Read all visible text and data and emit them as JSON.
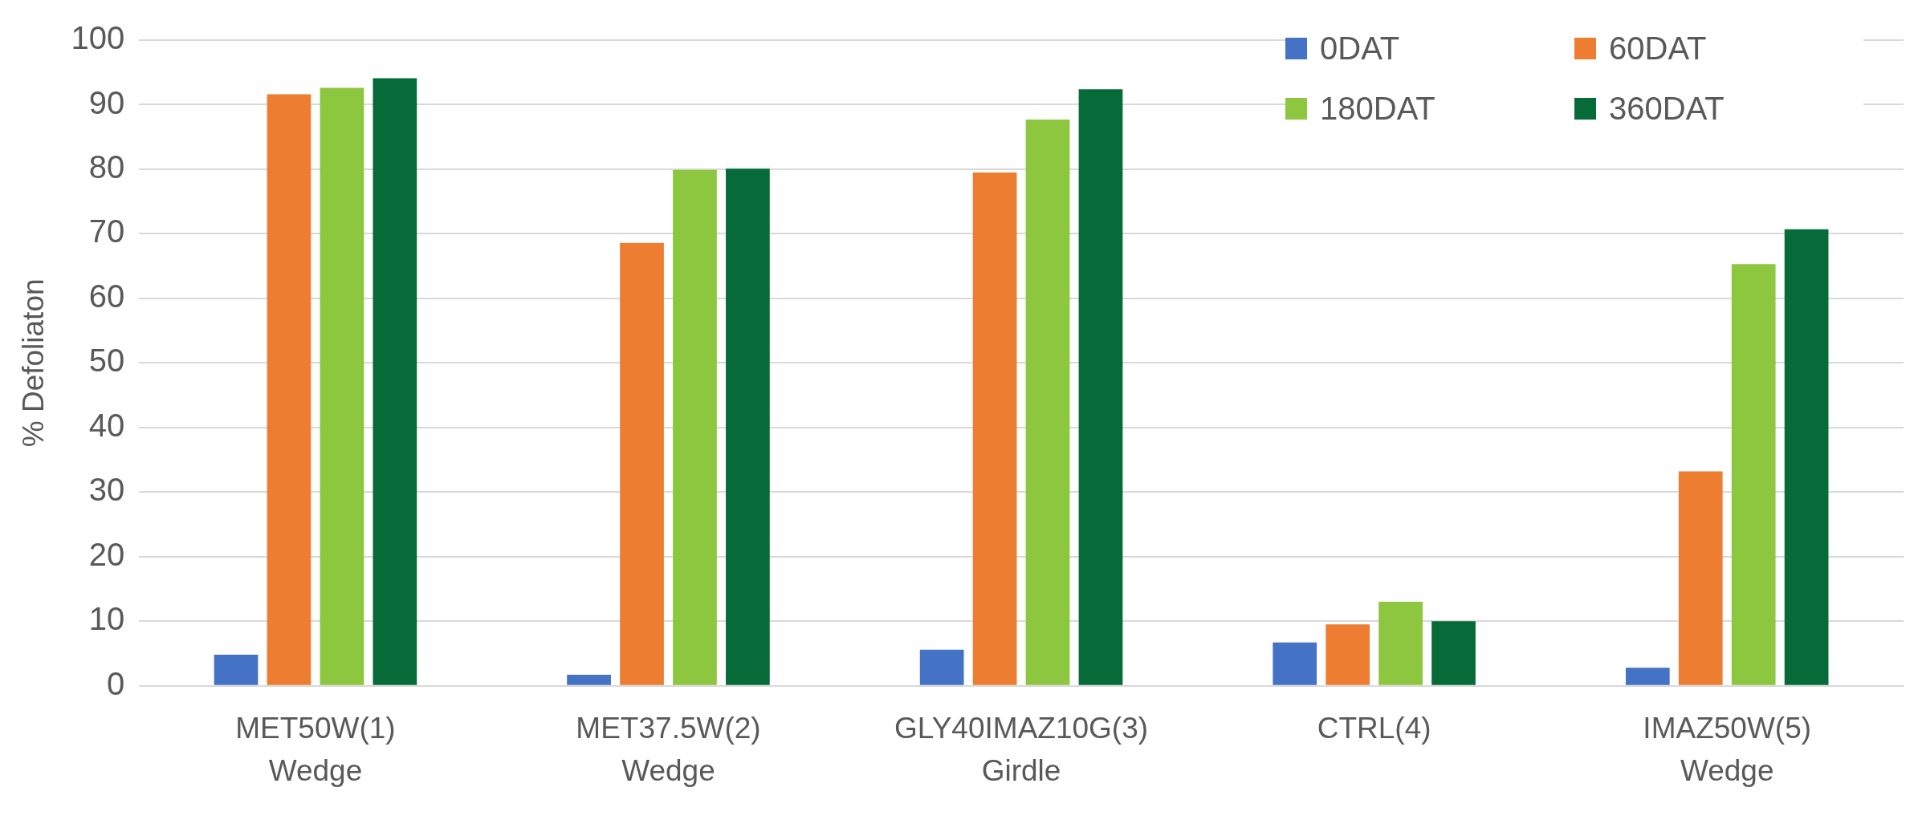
{
  "chart_data": {
    "type": "bar",
    "ylabel": "% Defoliaton",
    "categories": [
      "MET50W(1)\nWedge",
      "MET37.5W(2)\nWedge",
      "GLY40IMAZ10G(3)\nGirdle",
      "CTRL(4)",
      "IMAZ50W(5)\nWedge"
    ],
    "series": [
      {
        "name": "0DAT",
        "color": "#4472c4",
        "values": [
          4.8,
          1.7,
          5.6,
          6.7,
          2.8
        ]
      },
      {
        "name": "60DAT",
        "color": "#ed7d31",
        "values": [
          91.6,
          68.6,
          79.5,
          9.5,
          33.2
        ]
      },
      {
        "name": "180DAT",
        "color": "#8dc63f",
        "values": [
          92.6,
          79.9,
          87.7,
          13.0,
          65.3
        ]
      },
      {
        "name": "360DAT",
        "color": "#066b38",
        "values": [
          94.1,
          80.1,
          92.4,
          10.0,
          70.7
        ]
      }
    ],
    "ylim": [
      0,
      100
    ],
    "yticks": [
      0,
      10,
      20,
      30,
      40,
      50,
      60,
      70,
      80,
      90,
      100
    ],
    "grid": "y",
    "legend": "top right"
  }
}
